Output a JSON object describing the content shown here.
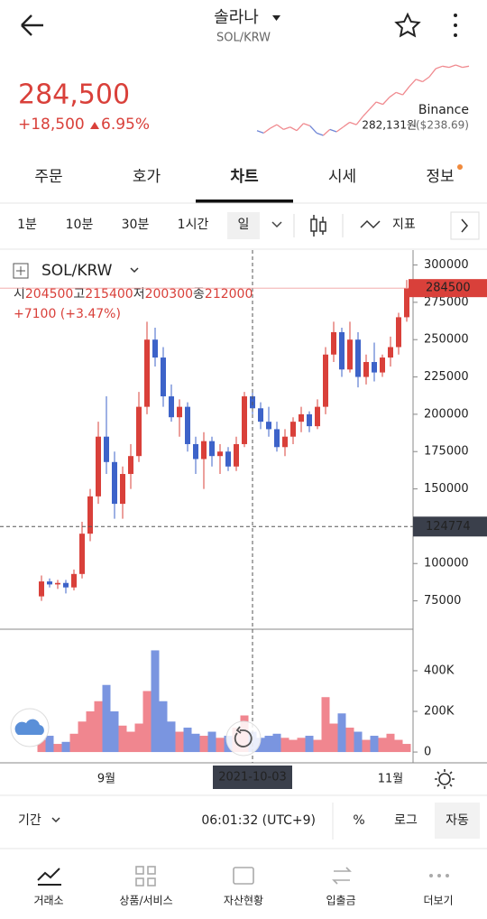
{
  "header": {
    "title": "솔라나",
    "subtitle": "SOL/KRW"
  },
  "price": {
    "current": "284,500",
    "change": "+18,500",
    "change_pct": "6.95%",
    "exchange": "Binance",
    "ref_krw": "282,131원",
    "ref_usd": "($238.69)",
    "mini_values": [
      238000,
      236000,
      240000,
      243000,
      239000,
      241000,
      238000,
      244000,
      242000,
      236000,
      234000,
      239000,
      237000,
      241000,
      245000,
      243000,
      250000,
      256000,
      262000,
      260000,
      266000,
      270000,
      268000,
      275000,
      281000,
      279000,
      283000,
      290000,
      292000,
      291000,
      293000,
      291000,
      292000
    ],
    "mini_color": "#f08a8f",
    "mini_color_down": "#6f86d6"
  },
  "tabs": [
    "주문",
    "호가",
    "차트",
    "시세",
    "정보"
  ],
  "active_tab": 2,
  "intervals": [
    "1분",
    "10분",
    "30분",
    "1시간",
    "일"
  ],
  "active_interval": 4,
  "indicator": "지표",
  "chart_data": {
    "type": "candlestick",
    "title": "SOL/KRW",
    "categories": [
      null,
      null,
      null,
      null,
      null,
      null,
      null,
      null,
      "9월",
      null,
      null,
      null,
      null,
      null,
      null,
      null,
      null,
      null,
      null,
      null,
      null,
      null,
      null,
      null,
      null,
      null,
      "2021-10-03",
      null,
      null,
      null,
      null,
      null,
      null,
      null,
      null,
      null,
      null,
      null,
      null,
      null,
      null,
      null,
      null,
      "11월",
      null,
      null
    ],
    "open": [
      78000,
      88000,
      86000,
      87000,
      84000,
      93000,
      120000,
      145000,
      185000,
      168000,
      140000,
      160000,
      172000,
      205000,
      250000,
      238000,
      212000,
      198000,
      205000,
      180000,
      170000,
      182000,
      172000,
      175000,
      165000,
      180000,
      212000,
      204000,
      195000,
      190000,
      178000,
      185000,
      195000,
      200000,
      192000,
      205000,
      240000,
      255000,
      230000,
      250000,
      225000,
      235000,
      228000,
      238000,
      245000,
      265000
    ],
    "high": [
      92000,
      90000,
      89000,
      89000,
      96000,
      128000,
      150000,
      195000,
      212000,
      175000,
      165000,
      180000,
      215000,
      262000,
      258000,
      245000,
      220000,
      210000,
      208000,
      185000,
      188000,
      185000,
      180000,
      178000,
      185000,
      215000,
      215000,
      208000,
      205000,
      195000,
      190000,
      198000,
      205000,
      202000,
      210000,
      245000,
      262000,
      258000,
      262000,
      255000,
      240000,
      248000,
      240000,
      252000,
      268000,
      290000
    ],
    "low": [
      75000,
      84000,
      83000,
      80000,
      82000,
      90000,
      115000,
      140000,
      160000,
      130000,
      130000,
      150000,
      168000,
      200000,
      232000,
      205000,
      195000,
      185000,
      175000,
      160000,
      150000,
      165000,
      160000,
      162000,
      162000,
      178000,
      200000,
      190000,
      185000,
      175000,
      172000,
      180000,
      188000,
      188000,
      190000,
      200000,
      235000,
      225000,
      228000,
      218000,
      220000,
      222000,
      225000,
      232000,
      240000,
      262000
    ],
    "close": [
      88000,
      86000,
      87000,
      84000,
      93000,
      120000,
      145000,
      185000,
      168000,
      140000,
      160000,
      172000,
      205000,
      250000,
      238000,
      212000,
      198000,
      205000,
      180000,
      170000,
      182000,
      172000,
      175000,
      165000,
      180000,
      212000,
      204000,
      195000,
      190000,
      178000,
      185000,
      195000,
      200000,
      192000,
      205000,
      240000,
      255000,
      230000,
      250000,
      225000,
      235000,
      228000,
      238000,
      245000,
      265000,
      284500
    ],
    "volume": [
      60000,
      80000,
      40000,
      50000,
      90000,
      150000,
      200000,
      250000,
      330000,
      200000,
      130000,
      100000,
      140000,
      300000,
      500000,
      250000,
      150000,
      100000,
      120000,
      90000,
      80000,
      100000,
      70000,
      80000,
      120000,
      180000,
      100000,
      70000,
      80000,
      90000,
      70000,
      60000,
      70000,
      80000,
      60000,
      270000,
      140000,
      190000,
      120000,
      100000,
      60000,
      80000,
      70000,
      90000,
      60000,
      40000
    ],
    "ylim": [
      56000,
      310000
    ],
    "yticks": [
      75000,
      100000,
      125000,
      150000,
      175000,
      200000,
      225000,
      250000,
      275000,
      300000
    ],
    "vol_ylim": [
      -53000,
      604000
    ],
    "vol_ticks": [
      0,
      {
        "value": 200000,
        "label": "200K"
      },
      {
        "value": 400000,
        "label": "400K"
      }
    ],
    "up_color": "#d9403a",
    "down_color": "#3d63c9",
    "vol_up_color": "#f0868f",
    "vol_down_color": "#7a95e0",
    "last_price": 284500,
    "crosshair_value": 124774,
    "legend_labels": [
      "시",
      "고",
      "저",
      "종"
    ],
    "legend_values": [
      204500,
      215400,
      200300,
      212000
    ],
    "legend_change": "+7100 (+3.47%)"
  },
  "footer": {
    "period": "기간",
    "time": "06:01:32 (UTC+9)",
    "buttons": [
      "%",
      "로그",
      "자동"
    ]
  },
  "nav": [
    "거래소",
    "상품/서비스",
    "자산현황",
    "입출금",
    "더보기"
  ]
}
